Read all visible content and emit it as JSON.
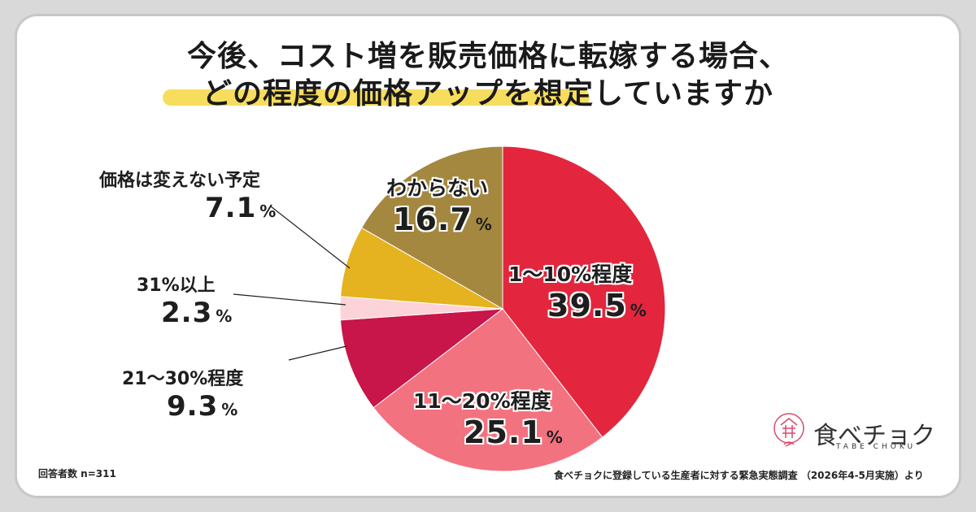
{
  "title": {
    "line1": "今後、コスト増を販売価格に転嫁する場合、",
    "line2": "どの程度の価格アップを想定していますか"
  },
  "chart_data": {
    "type": "pie",
    "categories": [
      "1〜10%程度",
      "11〜20%程度",
      "21〜30%程度",
      "31%以上",
      "価格は変えない予定",
      "わからない"
    ],
    "values": [
      39.5,
      25.1,
      9.3,
      2.3,
      7.1,
      16.7
    ],
    "value_labels": [
      "39.5",
      "25.1",
      "9.3",
      "2.3",
      "7.1",
      "16.7"
    ],
    "unit": "%",
    "colors": [
      "#e3263d",
      "#f3727f",
      "#c8154a",
      "#fcd3d8",
      "#e4b31f",
      "#a5883f"
    ],
    "start_angle_deg": 0,
    "direction": "clockwise"
  },
  "footer": {
    "sample": "回答者数 n=311",
    "source": "食べチョクに登録している生産者に対する緊急実態調査 （2026年4-5月実施）より"
  },
  "logo": {
    "name": "食べチョク",
    "sub": "TABE CHOKU",
    "accent_color": "#d94a6a"
  }
}
